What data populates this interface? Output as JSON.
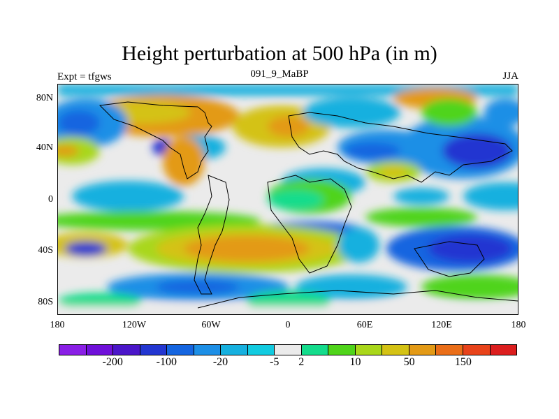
{
  "header": {
    "title": "Height perturbation at 500 hPa (in m)",
    "left_string": "Expt = tfgws",
    "center_string": "091_9_MaBP",
    "right_string": "JJA"
  },
  "axes": {
    "y_labels": [
      "80N",
      "40N",
      "0",
      "40S",
      "80S"
    ],
    "y_values": [
      80,
      40,
      0,
      -40,
      -80
    ],
    "x_labels": [
      "180",
      "120W",
      "60W",
      "0",
      "60E",
      "120E",
      "180"
    ],
    "x_values": [
      -180,
      -120,
      -60,
      0,
      60,
      120,
      180
    ],
    "lat_range": [
      -90,
      90
    ],
    "lon_range": [
      -180,
      180
    ]
  },
  "colorbar": {
    "colors": [
      "#8a1fe6",
      "#6f10d9",
      "#4b16c9",
      "#2336d1",
      "#1565e0",
      "#1d8fe6",
      "#16b0df",
      "#12cbe0",
      "#ebebeb",
      "#14dc8c",
      "#4fd41a",
      "#a9d71a",
      "#d4c214",
      "#e39a16",
      "#ea6e18",
      "#e8431a",
      "#dc1e1e"
    ],
    "labels": [
      "-200",
      "-100",
      "-20",
      "-5",
      "2",
      "10",
      "50",
      "150"
    ],
    "label_after_box": [
      2,
      4,
      6,
      8,
      9,
      11,
      13,
      15
    ]
  },
  "icons": {
    "map": "contour-map-icon"
  }
}
